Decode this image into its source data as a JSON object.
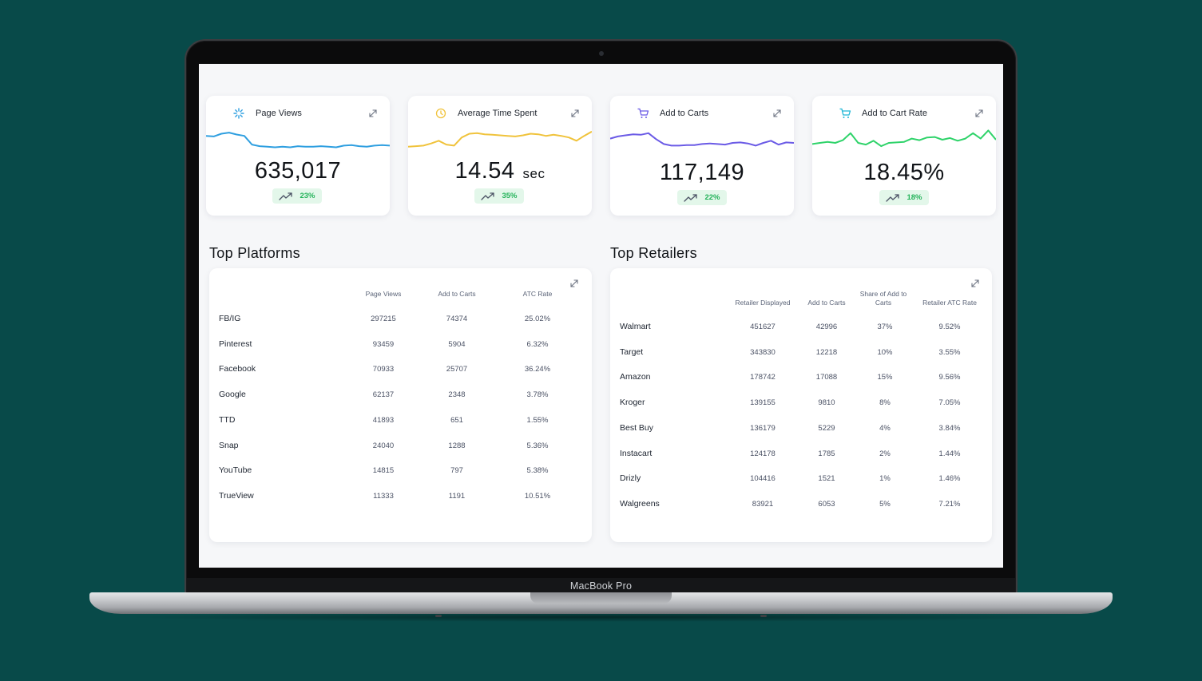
{
  "device": {
    "brand": "MacBook Pro"
  },
  "colors": {
    "page_views": "#2f9fe0",
    "avg_time": "#f0c33c",
    "add_to_carts": "#6b5be6",
    "atc_rate": "#2fd36a",
    "positive": "#24b35a",
    "background": "#084a49"
  },
  "kpis": [
    {
      "title": "Page Views",
      "icon": "asterisk-icon",
      "value": "635,017",
      "unit": "",
      "change": "23%",
      "color": "#2f9fe0",
      "spark": [
        0.3,
        0.32,
        0.22,
        0.18,
        0.25,
        0.3,
        0.62,
        0.68,
        0.7,
        0.72,
        0.7,
        0.72,
        0.68,
        0.7,
        0.7,
        0.68,
        0.7,
        0.72,
        0.66,
        0.64,
        0.68,
        0.7,
        0.66,
        0.64,
        0.66
      ]
    },
    {
      "title": "Average Time Spent",
      "icon": "clock-icon",
      "value": "14.54",
      "unit": "sec",
      "change": "35%",
      "color": "#f0c33c",
      "spark": [
        0.7,
        0.68,
        0.66,
        0.58,
        0.48,
        0.62,
        0.66,
        0.36,
        0.22,
        0.2,
        0.24,
        0.26,
        0.28,
        0.3,
        0.32,
        0.28,
        0.22,
        0.24,
        0.3,
        0.26,
        0.3,
        0.36,
        0.48,
        0.3,
        0.14
      ]
    },
    {
      "title": "Add to Carts",
      "icon": "cart-icon",
      "value": "117,149",
      "unit": "",
      "change": "22%",
      "color": "#6b5be6",
      "spark": [
        0.4,
        0.32,
        0.28,
        0.24,
        0.26,
        0.2,
        0.42,
        0.6,
        0.66,
        0.66,
        0.64,
        0.64,
        0.6,
        0.58,
        0.6,
        0.62,
        0.56,
        0.54,
        0.58,
        0.66,
        0.56,
        0.48,
        0.62,
        0.54,
        0.56
      ]
    },
    {
      "title": "Add to Cart Rate",
      "icon": "cart-icon",
      "value": "18.45%",
      "unit": "",
      "change": "18%",
      "color": "#2fd36a",
      "spark": [
        0.6,
        0.56,
        0.52,
        0.56,
        0.46,
        0.2,
        0.56,
        0.62,
        0.48,
        0.68,
        0.56,
        0.54,
        0.52,
        0.4,
        0.46,
        0.36,
        0.34,
        0.44,
        0.38,
        0.48,
        0.4,
        0.2,
        0.4,
        0.1,
        0.44
      ]
    }
  ],
  "platforms": {
    "title": "Top Platforms",
    "headers": [
      "Page Views",
      "Add to Carts",
      "ATC Rate"
    ],
    "rows": [
      {
        "name": "FB/IG",
        "page_views": "297215",
        "add_to_carts": "74374",
        "atc_rate": "25.02%"
      },
      {
        "name": "Pinterest",
        "page_views": "93459",
        "add_to_carts": "5904",
        "atc_rate": "6.32%"
      },
      {
        "name": "Facebook",
        "page_views": "70933",
        "add_to_carts": "25707",
        "atc_rate": "36.24%"
      },
      {
        "name": "Google",
        "page_views": "62137",
        "add_to_carts": "2348",
        "atc_rate": "3.78%"
      },
      {
        "name": "TTD",
        "page_views": "41893",
        "add_to_carts": "651",
        "atc_rate": "1.55%"
      },
      {
        "name": "Snap",
        "page_views": "24040",
        "add_to_carts": "1288",
        "atc_rate": "5.36%"
      },
      {
        "name": "YouTube",
        "page_views": "14815",
        "add_to_carts": "797",
        "atc_rate": "5.38%"
      },
      {
        "name": "TrueView",
        "page_views": "11333",
        "add_to_carts": "1191",
        "atc_rate": "10.51%"
      }
    ]
  },
  "retailers": {
    "title": "Top Retailers",
    "headers": [
      "Retailer Displayed",
      "Add to Carts",
      "Share of Add to Carts",
      "Retailer ATC Rate"
    ],
    "rows": [
      {
        "name": "Walmart",
        "displayed": "451627",
        "add_to_carts": "42996",
        "share": "37%",
        "atc_rate": "9.52%"
      },
      {
        "name": "Target",
        "displayed": "343830",
        "add_to_carts": "12218",
        "share": "10%",
        "atc_rate": "3.55%"
      },
      {
        "name": "Amazon",
        "displayed": "178742",
        "add_to_carts": "17088",
        "share": "15%",
        "atc_rate": "9.56%"
      },
      {
        "name": "Kroger",
        "displayed": "139155",
        "add_to_carts": "9810",
        "share": "8%",
        "atc_rate": "7.05%"
      },
      {
        "name": "Best Buy",
        "displayed": "136179",
        "add_to_carts": "5229",
        "share": "4%",
        "atc_rate": "3.84%"
      },
      {
        "name": "Instacart",
        "displayed": "124178",
        "add_to_carts": "1785",
        "share": "2%",
        "atc_rate": "1.44%"
      },
      {
        "name": "Drizly",
        "displayed": "104416",
        "add_to_carts": "1521",
        "share": "1%",
        "atc_rate": "1.46%"
      },
      {
        "name": "Walgreens",
        "displayed": "83921",
        "add_to_carts": "6053",
        "share": "5%",
        "atc_rate": "7.21%"
      }
    ]
  }
}
